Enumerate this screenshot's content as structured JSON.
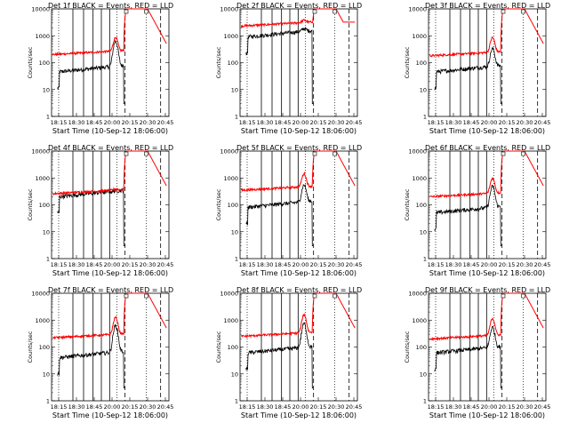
{
  "chart_data": {
    "type": "line",
    "title_suffix": " BLACK = Events, RED = LLD",
    "ylabel": "Counts/sec",
    "xlabel": "Start Time (10-Sep-12 18:06:00)",
    "x_ticks": [
      "18:15",
      "18:30",
      "18:45",
      "20:00",
      "20:15",
      "20:30",
      "20:45"
    ],
    "y_ticks": [
      "1",
      "10",
      "100",
      "1000",
      "10000"
    ],
    "ylim": [
      1,
      10000
    ],
    "y_scale": "log",
    "colors": {
      "events": "#000000",
      "lld": "#ff0000"
    },
    "panels": [
      {
        "label": "Det 1f",
        "events_base": 45,
        "lld_base": 200,
        "peak": 800,
        "events_peak": 600
      },
      {
        "label": "Det 2f",
        "events_base": 900,
        "lld_base": 2300,
        "peak": 3000,
        "events_peak": 1300
      },
      {
        "label": "Det 3f",
        "events_base": 45,
        "lld_base": 180,
        "peak": 800,
        "events_peak": 300
      },
      {
        "label": "Det 4f",
        "events_base": 200,
        "lld_base": 260,
        "peak": 300,
        "events_peak": 200
      },
      {
        "label": "Det 5f",
        "events_base": 80,
        "lld_base": 350,
        "peak": 1300,
        "events_peak": 500
      },
      {
        "label": "Det 6f",
        "events_base": 50,
        "lld_base": 200,
        "peak": 900,
        "events_peak": 450
      },
      {
        "label": "Det 7f",
        "events_base": 40,
        "lld_base": 220,
        "peak": 1200,
        "events_peak": 600
      },
      {
        "label": "Det 8f",
        "events_base": 60,
        "lld_base": 250,
        "peak": 1500,
        "events_peak": 700
      },
      {
        "label": "Det 9f",
        "events_base": 60,
        "lld_base": 200,
        "peak": 1100,
        "events_peak": 500
      }
    ]
  }
}
